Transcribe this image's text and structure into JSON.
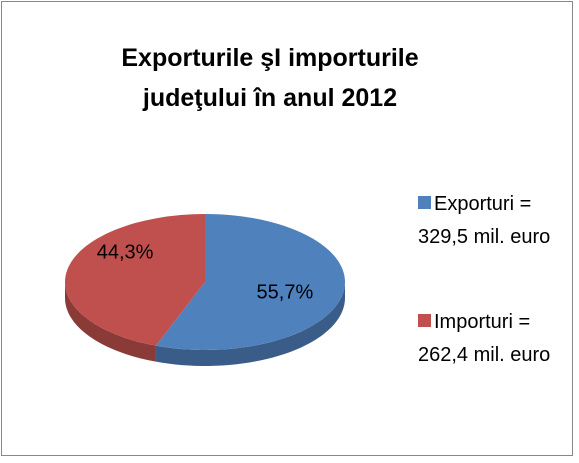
{
  "chart_data": {
    "type": "pie",
    "title": "Exporturile şI importurile judeţului  în anul 2012",
    "categories": [
      "Exporturi = 329,5 mil. euro",
      "Importuri = 262,4 mil. euro"
    ],
    "values": [
      55.7,
      44.3
    ],
    "value_labels": [
      "55,7%",
      "44,3%"
    ],
    "colors": [
      "#4f81bd",
      "#c0504d"
    ],
    "legend": "right"
  }
}
